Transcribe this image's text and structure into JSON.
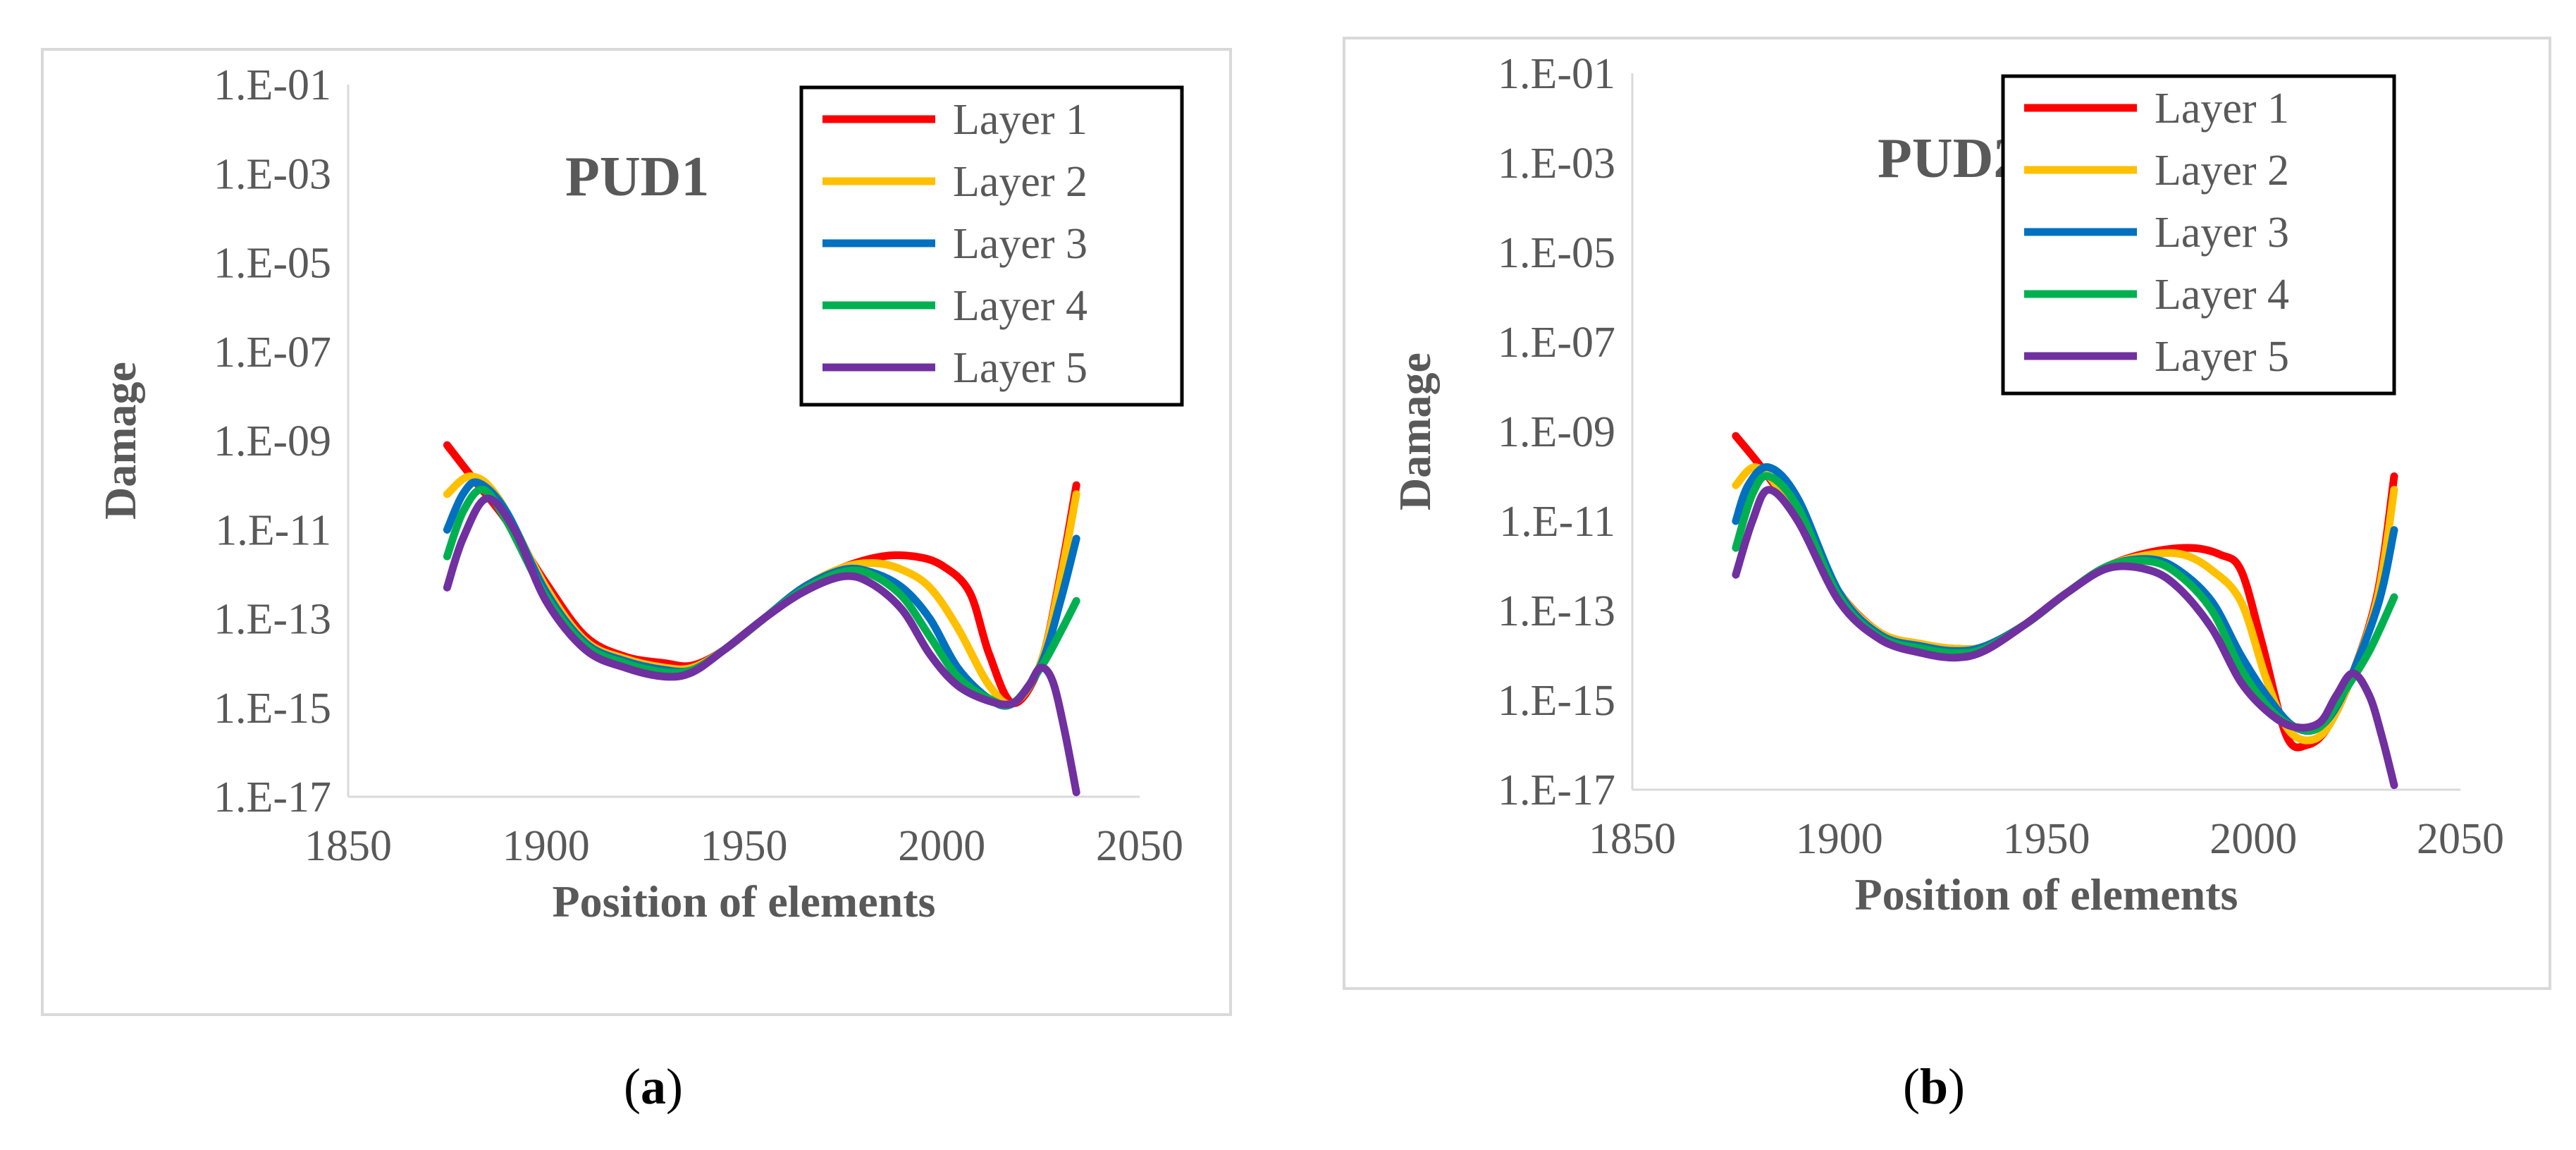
{
  "chart_data": [
    {
      "type": "line",
      "title": "PUD1",
      "xlabel": "Position of elements",
      "ylabel": "Damage",
      "yscale": "log",
      "xlim": [
        1850,
        2050
      ],
      "ylim_exponent": [
        -17,
        -1
      ],
      "x_ticks": [
        "1850",
        "1900",
        "1950",
        "2000",
        "2050"
      ],
      "y_ticks": [
        "1.E-01",
        "1.E-03",
        "1.E-05",
        "1.E-07",
        "1.E-09",
        "1.E-11",
        "1.E-13",
        "1.E-15",
        "1.E-17"
      ],
      "legend_position": "top-right",
      "caption": "a",
      "series": [
        {
          "name": "Layer 1",
          "color": "#ff0000",
          "x": [
            1875,
            1882,
            1890,
            1900,
            1910,
            1920,
            1930,
            1937,
            1945,
            1955,
            1965,
            1975,
            1985,
            1993,
            2000,
            2007,
            2012,
            2018,
            2025,
            2030,
            2034
          ],
          "log10_y": [
            -9.1,
            -9.9,
            -10.8,
            -12.2,
            -13.4,
            -13.85,
            -14.0,
            -14.05,
            -13.7,
            -13.0,
            -12.3,
            -11.85,
            -11.6,
            -11.6,
            -11.8,
            -12.4,
            -13.8,
            -14.9,
            -14.0,
            -12.0,
            -10.0
          ]
        },
        {
          "name": "Layer 2",
          "color": "#ffc000",
          "x": [
            1875,
            1881,
            1888,
            1900,
            1910,
            1920,
            1930,
            1937,
            1945,
            1955,
            1965,
            1975,
            1983,
            1990,
            1997,
            2004,
            2012,
            2018,
            2025,
            2030,
            2034
          ],
          "log10_y": [
            -10.2,
            -9.8,
            -10.3,
            -12.3,
            -13.5,
            -13.9,
            -14.1,
            -14.1,
            -13.7,
            -13.0,
            -12.3,
            -11.85,
            -11.75,
            -11.9,
            -12.3,
            -13.2,
            -14.5,
            -14.9,
            -14.0,
            -12.1,
            -10.2
          ]
        },
        {
          "name": "Layer 3",
          "color": "#0070c0",
          "x": [
            1875,
            1879,
            1883,
            1890,
            1900,
            1910,
            1920,
            1930,
            1937,
            1945,
            1955,
            1965,
            1975,
            1982,
            1990,
            1997,
            2004,
            2012,
            2018,
            2025,
            2030,
            2034
          ],
          "log10_y": [
            -11.0,
            -10.2,
            -9.95,
            -10.6,
            -12.4,
            -13.55,
            -13.95,
            -14.15,
            -14.15,
            -13.7,
            -13.0,
            -12.3,
            -11.9,
            -11.95,
            -12.3,
            -13.0,
            -14.1,
            -14.8,
            -14.9,
            -14.05,
            -12.6,
            -11.2
          ]
        },
        {
          "name": "Layer 4",
          "color": "#00b050",
          "x": [
            1875,
            1879,
            1884,
            1890,
            1900,
            1910,
            1920,
            1930,
            1937,
            1945,
            1955,
            1965,
            1975,
            1982,
            1990,
            1997,
            2004,
            2012,
            2018,
            2025,
            2030,
            2034
          ],
          "log10_y": [
            -11.6,
            -10.6,
            -10.1,
            -10.8,
            -12.5,
            -13.6,
            -14.0,
            -14.2,
            -14.15,
            -13.7,
            -13.0,
            -12.35,
            -11.95,
            -12.0,
            -12.5,
            -13.4,
            -14.3,
            -14.8,
            -14.9,
            -14.1,
            -13.3,
            -12.6
          ]
        },
        {
          "name": "Layer 5",
          "color": "#7030a0",
          "x": [
            1875,
            1879,
            1885,
            1892,
            1900,
            1910,
            1920,
            1930,
            1937,
            1945,
            1955,
            1965,
            1975,
            1982,
            1990,
            1997,
            2004,
            2012,
            2018,
            2022,
            2025,
            2028,
            2031,
            2034
          ],
          "log10_y": [
            -12.3,
            -11.2,
            -10.3,
            -11.0,
            -12.6,
            -13.7,
            -14.1,
            -14.3,
            -14.2,
            -13.7,
            -13.0,
            -12.4,
            -12.05,
            -12.2,
            -12.8,
            -13.8,
            -14.5,
            -14.85,
            -14.9,
            -14.5,
            -14.1,
            -14.4,
            -15.5,
            -16.9
          ]
        }
      ]
    },
    {
      "type": "line",
      "title": "PUD2",
      "xlabel": "Position of elements",
      "ylabel": "Damage",
      "yscale": "log",
      "xlim": [
        1850,
        2050
      ],
      "ylim_exponent": [
        -17,
        -1
      ],
      "x_ticks": [
        "1850",
        "1900",
        "1950",
        "2000",
        "2050"
      ],
      "y_ticks": [
        "1.E-01",
        "1.E-03",
        "1.E-05",
        "1.E-07",
        "1.E-09",
        "1.E-11",
        "1.E-13",
        "1.E-15",
        "1.E-17"
      ],
      "legend_position": "top-right",
      "caption": "b",
      "series": [
        {
          "name": "Layer 1",
          "color": "#ff0000",
          "x": [
            1875,
            1882,
            1890,
            1900,
            1910,
            1920,
            1928,
            1935,
            1945,
            1955,
            1965,
            1975,
            1985,
            1992,
            1997,
            2002,
            2008,
            2013,
            2018,
            2024,
            2030,
            2034
          ],
          "log10_y": [
            -9.1,
            -9.9,
            -11.0,
            -12.6,
            -13.5,
            -13.75,
            -13.85,
            -13.8,
            -13.3,
            -12.6,
            -12.0,
            -11.7,
            -11.6,
            -11.75,
            -12.1,
            -13.7,
            -15.8,
            -16.0,
            -15.6,
            -14.4,
            -12.6,
            -10.0
          ]
        },
        {
          "name": "Layer 2",
          "color": "#ffc000",
          "x": [
            1875,
            1880,
            1887,
            1900,
            1910,
            1920,
            1928,
            1935,
            1945,
            1955,
            1965,
            1975,
            1983,
            1990,
            1997,
            2003,
            2008,
            2013,
            2018,
            2024,
            2030,
            2034
          ],
          "log10_y": [
            -10.2,
            -9.8,
            -10.5,
            -12.6,
            -13.5,
            -13.75,
            -13.85,
            -13.8,
            -13.3,
            -12.6,
            -12.0,
            -11.75,
            -11.75,
            -12.1,
            -12.8,
            -14.5,
            -15.6,
            -15.9,
            -15.6,
            -14.4,
            -12.7,
            -10.3
          ]
        },
        {
          "name": "Layer 3",
          "color": "#0070c0",
          "x": [
            1875,
            1878,
            1883,
            1890,
            1900,
            1910,
            1920,
            1928,
            1935,
            1945,
            1955,
            1965,
            1975,
            1982,
            1990,
            1997,
            2004,
            2010,
            2016,
            2022,
            2030,
            2034
          ],
          "log10_y": [
            -11.0,
            -10.2,
            -9.8,
            -10.5,
            -12.6,
            -13.55,
            -13.8,
            -13.9,
            -13.8,
            -13.3,
            -12.6,
            -12.0,
            -11.85,
            -12.1,
            -12.8,
            -14.0,
            -15.0,
            -15.6,
            -15.6,
            -14.8,
            -12.9,
            -11.2
          ]
        },
        {
          "name": "Layer 4",
          "color": "#00b050",
          "x": [
            1875,
            1879,
            1883,
            1890,
            1900,
            1910,
            1920,
            1928,
            1935,
            1945,
            1955,
            1965,
            1975,
            1982,
            1990,
            1997,
            2004,
            2010,
            2016,
            2022,
            2028,
            2034
          ],
          "log10_y": [
            -11.6,
            -10.4,
            -10.0,
            -10.7,
            -12.7,
            -13.6,
            -13.85,
            -13.95,
            -13.85,
            -13.3,
            -12.6,
            -12.0,
            -11.9,
            -12.2,
            -13.0,
            -14.3,
            -15.2,
            -15.6,
            -15.6,
            -14.8,
            -13.9,
            -12.7
          ]
        },
        {
          "name": "Layer 5",
          "color": "#7030a0",
          "x": [
            1875,
            1879,
            1883,
            1890,
            1900,
            1910,
            1920,
            1928,
            1935,
            1945,
            1955,
            1965,
            1975,
            1982,
            1990,
            1997,
            2004,
            2010,
            2016,
            2020,
            2024,
            2028,
            2031,
            2034
          ],
          "log10_y": [
            -12.2,
            -11.0,
            -10.3,
            -11.0,
            -12.8,
            -13.65,
            -13.95,
            -14.05,
            -13.9,
            -13.3,
            -12.6,
            -12.05,
            -12.1,
            -12.5,
            -13.4,
            -14.6,
            -15.3,
            -15.6,
            -15.5,
            -14.9,
            -14.4,
            -14.9,
            -15.8,
            -16.9
          ]
        }
      ]
    }
  ]
}
